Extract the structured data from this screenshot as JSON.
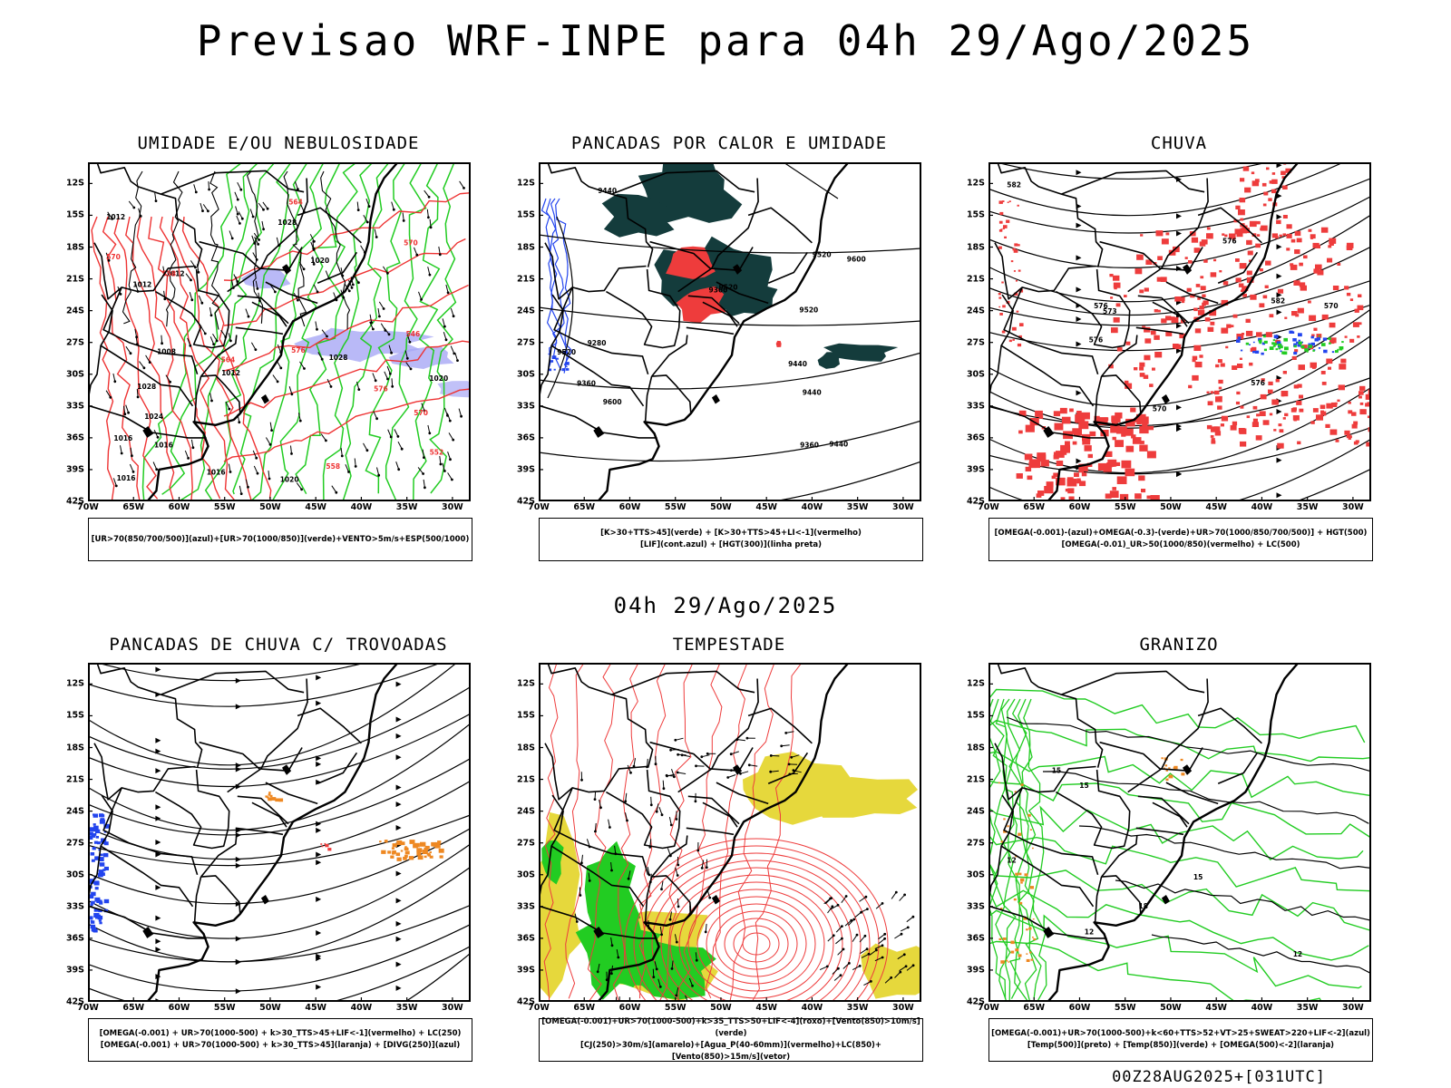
{
  "header": {
    "title": "Previsao WRF-INPE  para 04h 29/Ago/2025",
    "mid_time": "04h 29/Ago/2025",
    "footer": "00Z28AUG2025+[031UTC]"
  },
  "axes": {
    "latitudes": [
      "12S",
      "15S",
      "18S",
      "21S",
      "24S",
      "27S",
      "30S",
      "33S",
      "36S",
      "39S",
      "42S"
    ],
    "longitudes": [
      "70W",
      "65W",
      "60W",
      "55W",
      "50W",
      "45W",
      "40W",
      "35W",
      "30W"
    ]
  },
  "colors": {
    "humidity_blue": "#a7a7f5",
    "humidity_green": "#22cc22",
    "thickness_red": "#ee3333",
    "dark_teal": "#143c3c",
    "rain_red": "#ee3c3c",
    "blue": "#2244ee",
    "orange": "#ee8822",
    "yellow": "#e6d83c",
    "green": "#22cc22"
  },
  "panels": [
    {
      "title": "UMIDADE E/OU NEBULOSIDADE",
      "legend": [
        "[UR>70(850/700/500)](azul)+[UR>70(1000/850)](verde)+VENTO>5m/s+ESP(500/1000)"
      ],
      "contour_labels": [
        "1012",
        "1012",
        "1016",
        "1020",
        "1016",
        "1020",
        "1020",
        "1024",
        "1028",
        "1028",
        "1016",
        "1012",
        "1008",
        "1012",
        "1016",
        "1028",
        "570",
        "570",
        "564",
        "558",
        "552",
        "546",
        "576",
        "558",
        "564",
        "570",
        "576"
      ]
    },
    {
      "title": "PANCADAS POR CALOR E UMIDADE",
      "legend": [
        "[K>30+TTS>45](verde) + [K>30+TTS>45+LI<-1](vermelho)",
        "[LIF](cont.azul) + [HGT(300)](linha preta)"
      ],
      "contour_labels": [
        "9520",
        "9520",
        "9600",
        "9600",
        "9520",
        "9440",
        "9440",
        "9440",
        "9360",
        "9360",
        "9520",
        "9440",
        "9360",
        "9280"
      ]
    },
    {
      "title": "CHUVA",
      "legend": [
        "[OMEGA(-0.001)-(azul)+OMEGA(-0.3)-(verde)+UR>70(1000/850/700/500)] + HGT(500)",
        "[OMEGA(-0.01)_UR>50(1000/850)(vermelho) + LC(500)"
      ],
      "contour_labels": [
        "582",
        "582",
        "576",
        "576",
        "576",
        "570",
        "576",
        "573",
        "570"
      ]
    },
    {
      "title": "PANCADAS DE CHUVA C/ TROVOADAS",
      "legend": [
        "[OMEGA(-0.001) + UR>70(1000-500) + k>30_TTS>45+LIF<-1](vermelho) + LC(250)",
        "[OMEGA(-0.001) + UR>70(1000-500) + k>30_TTS>45](laranja) + [DIVG(250)](azul)"
      ],
      "contour_labels": []
    },
    {
      "title": "TEMPESTADE",
      "legend": [
        "[OMEGA(-0.001)+UR>70(1000-500)+k>35_TTS>50+LIF<-4](roxo)+[Vento(850)>10m/s](verde)",
        "[CJ(250)>30m/s](amarelo)+[Agua_P(40-60mm)](vermelho)+LC(850)+[Vento(850)>15m/s](vetor)"
      ],
      "contour_labels": []
    },
    {
      "title": "GRANIZO",
      "legend": [
        "[OMEGA(-0.001)+UR>70(1000-500)+k<60+TTS>52+VT>25+SWEAT>220+LIF<-2](azul)",
        "[Temp(500)](preto) + [Temp(850)](verde) + [OMEGA(500)<-2](laranja)"
      ],
      "contour_labels": [
        "12",
        "12",
        "15",
        "15",
        "18",
        "15",
        "12"
      ]
    }
  ]
}
